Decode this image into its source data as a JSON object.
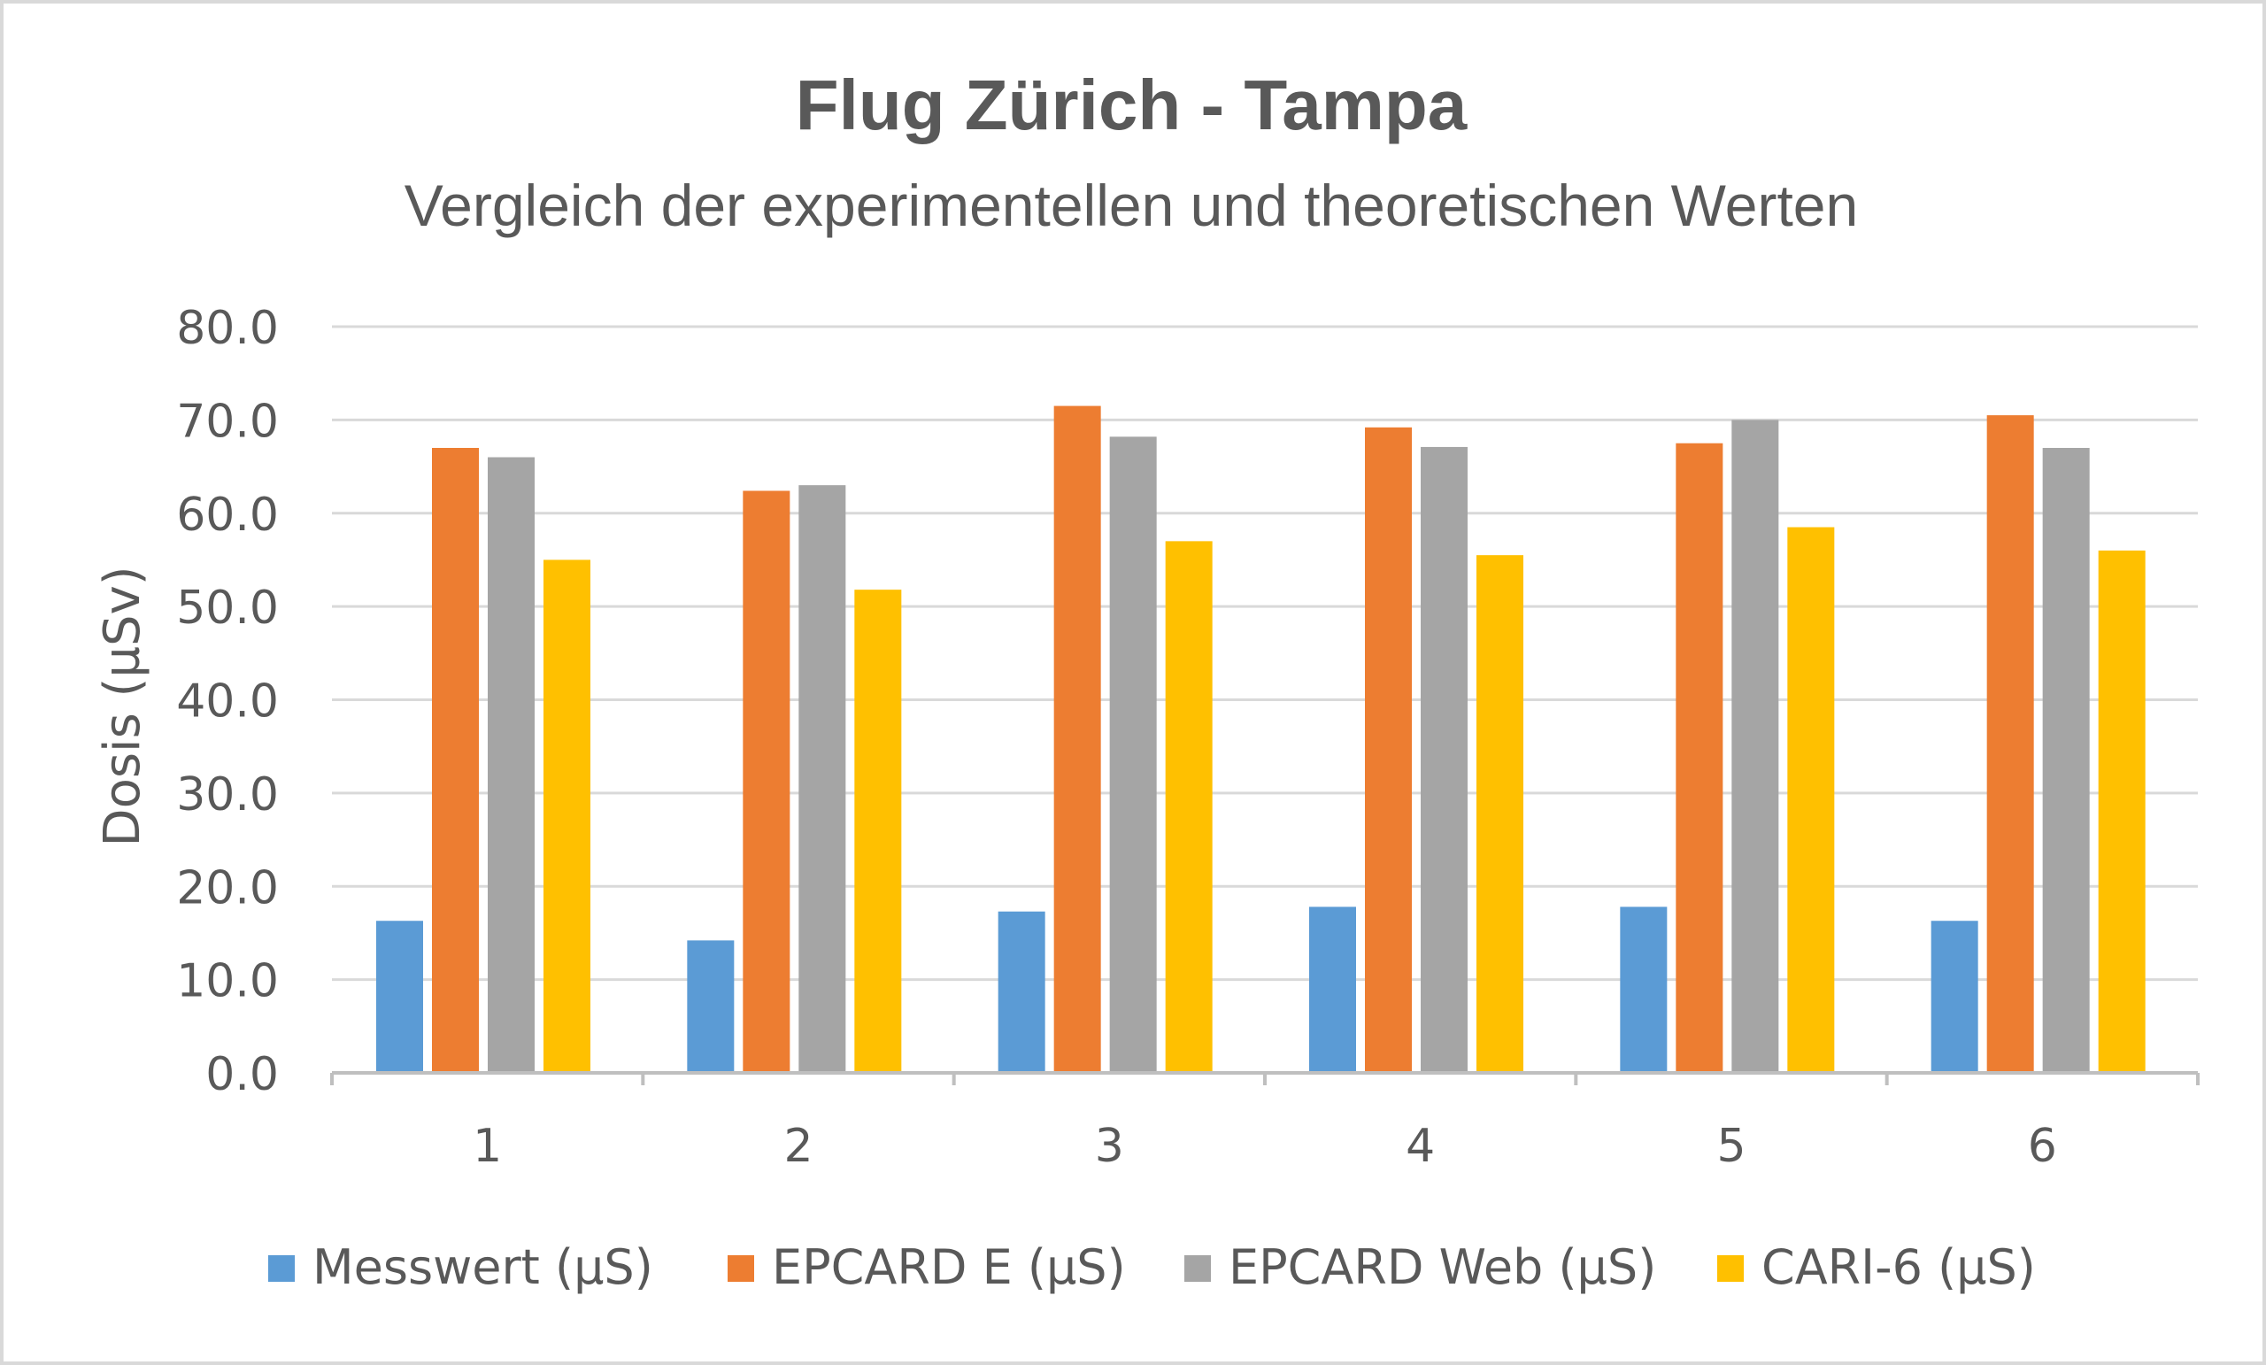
{
  "chart_data": {
    "type": "bar",
    "title": "Flug Zürich - Tampa",
    "subtitle": "Vergleich der experimentellen und theoretischen Werten",
    "xlabel": "",
    "ylabel": "Dosis (µSv)",
    "categories": [
      "1",
      "2",
      "3",
      "4",
      "5",
      "6"
    ],
    "ylim": [
      0,
      80
    ],
    "yticks": [
      "0.0",
      "10.0",
      "20.0",
      "30.0",
      "40.0",
      "50.0",
      "60.0",
      "70.0",
      "80.0"
    ],
    "grid": true,
    "legend_position": "bottom",
    "series": [
      {
        "name": "Messwert (µS)",
        "color": "#5b9bd5",
        "values": [
          16.3,
          14.2,
          17.3,
          17.8,
          17.8,
          16.3
        ]
      },
      {
        "name": "EPCARD E (µS)",
        "color": "#ed7d31",
        "values": [
          67.0,
          62.4,
          71.5,
          69.2,
          67.5,
          70.5
        ]
      },
      {
        "name": "EPCARD Web (µS)",
        "color": "#a5a5a5",
        "values": [
          66.0,
          63.0,
          68.2,
          67.1,
          70.0,
          67.0
        ]
      },
      {
        "name": "CARI-6 (µS)",
        "color": "#ffc000",
        "values": [
          55.0,
          51.8,
          57.0,
          55.5,
          58.5,
          56.0
        ]
      }
    ]
  }
}
